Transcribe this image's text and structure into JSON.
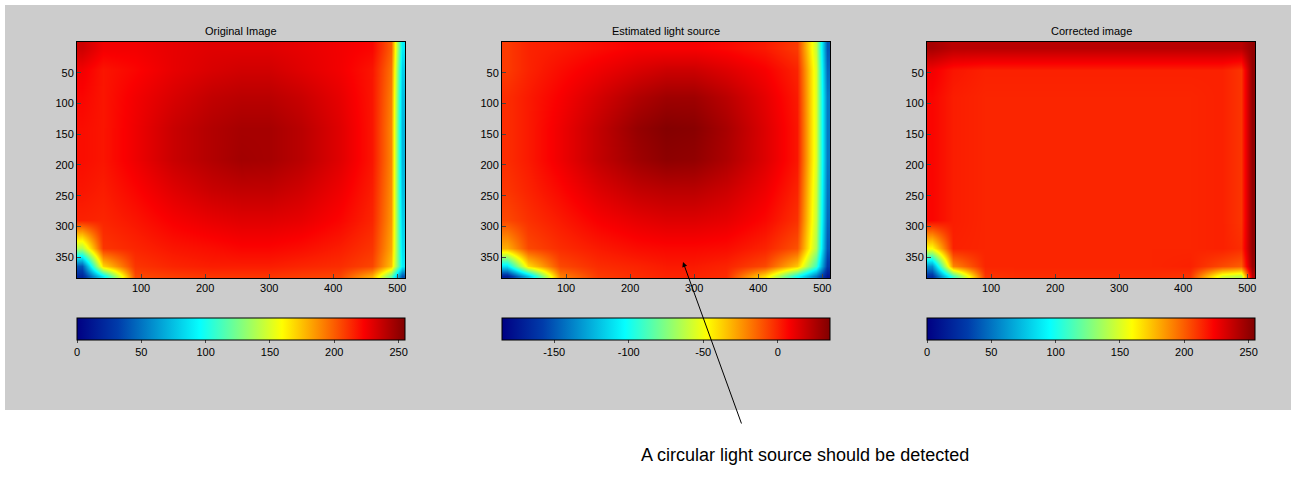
{
  "chart_data": [
    {
      "type": "heatmap",
      "title": "Original Image",
      "x": [
        8,
        40,
        90,
        150,
        210,
        256,
        300,
        350,
        410,
        460,
        490,
        507
      ],
      "y": [
        10,
        45,
        90,
        140,
        190,
        240,
        290,
        335,
        365,
        380
      ],
      "z": [
        [
          235,
          225,
          225,
          228,
          230,
          230,
          230,
          228,
          225,
          222,
          200,
          90
        ],
        [
          225,
          218,
          222,
          228,
          232,
          234,
          234,
          230,
          225,
          218,
          195,
          80
        ],
        [
          222,
          218,
          225,
          232,
          238,
          240,
          240,
          236,
          228,
          218,
          192,
          75
        ],
        [
          220,
          218,
          226,
          236,
          242,
          245,
          245,
          240,
          230,
          218,
          190,
          72
        ],
        [
          220,
          218,
          226,
          236,
          242,
          246,
          245,
          240,
          230,
          218,
          190,
          72
        ],
        [
          218,
          216,
          222,
          230,
          236,
          238,
          238,
          234,
          226,
          216,
          188,
          75
        ],
        [
          215,
          214,
          218,
          224,
          228,
          230,
          230,
          228,
          222,
          214,
          186,
          80
        ],
        [
          140,
          210,
          214,
          218,
          220,
          222,
          222,
          220,
          216,
          210,
          182,
          85
        ],
        [
          40,
          170,
          210,
          214,
          216,
          216,
          216,
          214,
          212,
          206,
          175,
          90
        ],
        [
          20,
          90,
          205,
          208,
          210,
          210,
          210,
          208,
          206,
          180,
          120,
          40
        ]
      ],
      "xlim": [
        0,
        512
      ],
      "ylim": [
        384,
        0
      ],
      "xticks": [
        100,
        200,
        300,
        400,
        500
      ],
      "yticks": [
        50,
        100,
        150,
        200,
        250,
        300,
        350
      ],
      "colorbar": {
        "range": [
          0,
          255
        ],
        "ticks": [
          0,
          50,
          100,
          150,
          200,
          250
        ]
      }
    },
    {
      "type": "heatmap",
      "title": "Estimated light source",
      "x": [
        8,
        40,
        90,
        150,
        210,
        256,
        300,
        350,
        410,
        460,
        490,
        507
      ],
      "y": [
        10,
        45,
        90,
        140,
        190,
        240,
        290,
        335,
        365,
        380
      ],
      "z": [
        [
          -5,
          0,
          2,
          5,
          8,
          8,
          8,
          6,
          2,
          -5,
          -60,
          -150
        ],
        [
          -5,
          0,
          5,
          10,
          15,
          18,
          18,
          14,
          8,
          0,
          -55,
          -145
        ],
        [
          -2,
          2,
          8,
          16,
          24,
          28,
          28,
          22,
          12,
          2,
          -55,
          -140
        ],
        [
          -2,
          2,
          10,
          20,
          30,
          34,
          33,
          26,
          14,
          3,
          -55,
          -140
        ],
        [
          -2,
          2,
          10,
          20,
          28,
          32,
          31,
          25,
          14,
          3,
          -55,
          -140
        ],
        [
          -4,
          0,
          6,
          14,
          20,
          22,
          22,
          18,
          10,
          0,
          -58,
          -142
        ],
        [
          -8,
          -3,
          2,
          8,
          12,
          14,
          14,
          12,
          6,
          -3,
          -60,
          -145
        ],
        [
          -30,
          -8,
          -2,
          2,
          5,
          6,
          6,
          5,
          0,
          -10,
          -65,
          -150
        ],
        [
          -110,
          -40,
          -8,
          -2,
          0,
          2,
          2,
          0,
          -8,
          -35,
          -90,
          -160
        ],
        [
          -170,
          -120,
          -20,
          -5,
          -2,
          0,
          0,
          -2,
          -40,
          -100,
          -140,
          -175
        ]
      ],
      "xlim": [
        0,
        512
      ],
      "ylim": [
        384,
        0
      ],
      "xticks": [
        100,
        200,
        300,
        400,
        500
      ],
      "yticks": [
        50,
        100,
        150,
        200,
        250,
        300,
        350
      ],
      "colorbar": {
        "range": [
          -185,
          35
        ],
        "ticks": [
          -150,
          -100,
          -50,
          0
        ]
      },
      "annotations": [
        "A circular light source should be detected"
      ]
    },
    {
      "type": "heatmap",
      "title": "Corrected image",
      "x": [
        8,
        40,
        90,
        150,
        210,
        256,
        300,
        350,
        410,
        460,
        490,
        507
      ],
      "y": [
        10,
        45,
        90,
        140,
        190,
        240,
        290,
        335,
        365,
        380
      ],
      "z": [
        [
          245,
          240,
          240,
          240,
          240,
          240,
          240,
          240,
          240,
          240,
          240,
          250
        ],
        [
          225,
          218,
          215,
          215,
          215,
          215,
          215,
          215,
          215,
          215,
          210,
          250
        ],
        [
          222,
          216,
          214,
          214,
          214,
          214,
          214,
          214,
          214,
          215,
          210,
          250
        ],
        [
          222,
          216,
          214,
          214,
          214,
          214,
          214,
          214,
          214,
          215,
          210,
          250
        ],
        [
          222,
          216,
          214,
          214,
          214,
          214,
          214,
          214,
          214,
          215,
          210,
          250
        ],
        [
          222,
          216,
          214,
          214,
          214,
          214,
          214,
          214,
          214,
          215,
          210,
          250
        ],
        [
          222,
          216,
          214,
          214,
          214,
          214,
          214,
          214,
          214,
          215,
          210,
          250
        ],
        [
          160,
          215,
          214,
          214,
          214,
          214,
          214,
          214,
          214,
          215,
          212,
          250
        ],
        [
          60,
          190,
          214,
          214,
          214,
          214,
          214,
          214,
          215,
          205,
          200,
          248
        ],
        [
          25,
          110,
          210,
          212,
          212,
          212,
          212,
          212,
          210,
          150,
          140,
          240
        ]
      ],
      "xlim": [
        0,
        512
      ],
      "ylim": [
        384,
        0
      ],
      "xticks": [
        100,
        200,
        300,
        400,
        500
      ],
      "yticks": [
        50,
        100,
        150,
        200,
        250,
        300,
        350
      ],
      "colorbar": {
        "range": [
          0,
          255
        ],
        "ticks": [
          0,
          50,
          100,
          150,
          200,
          250
        ]
      }
    }
  ]
}
